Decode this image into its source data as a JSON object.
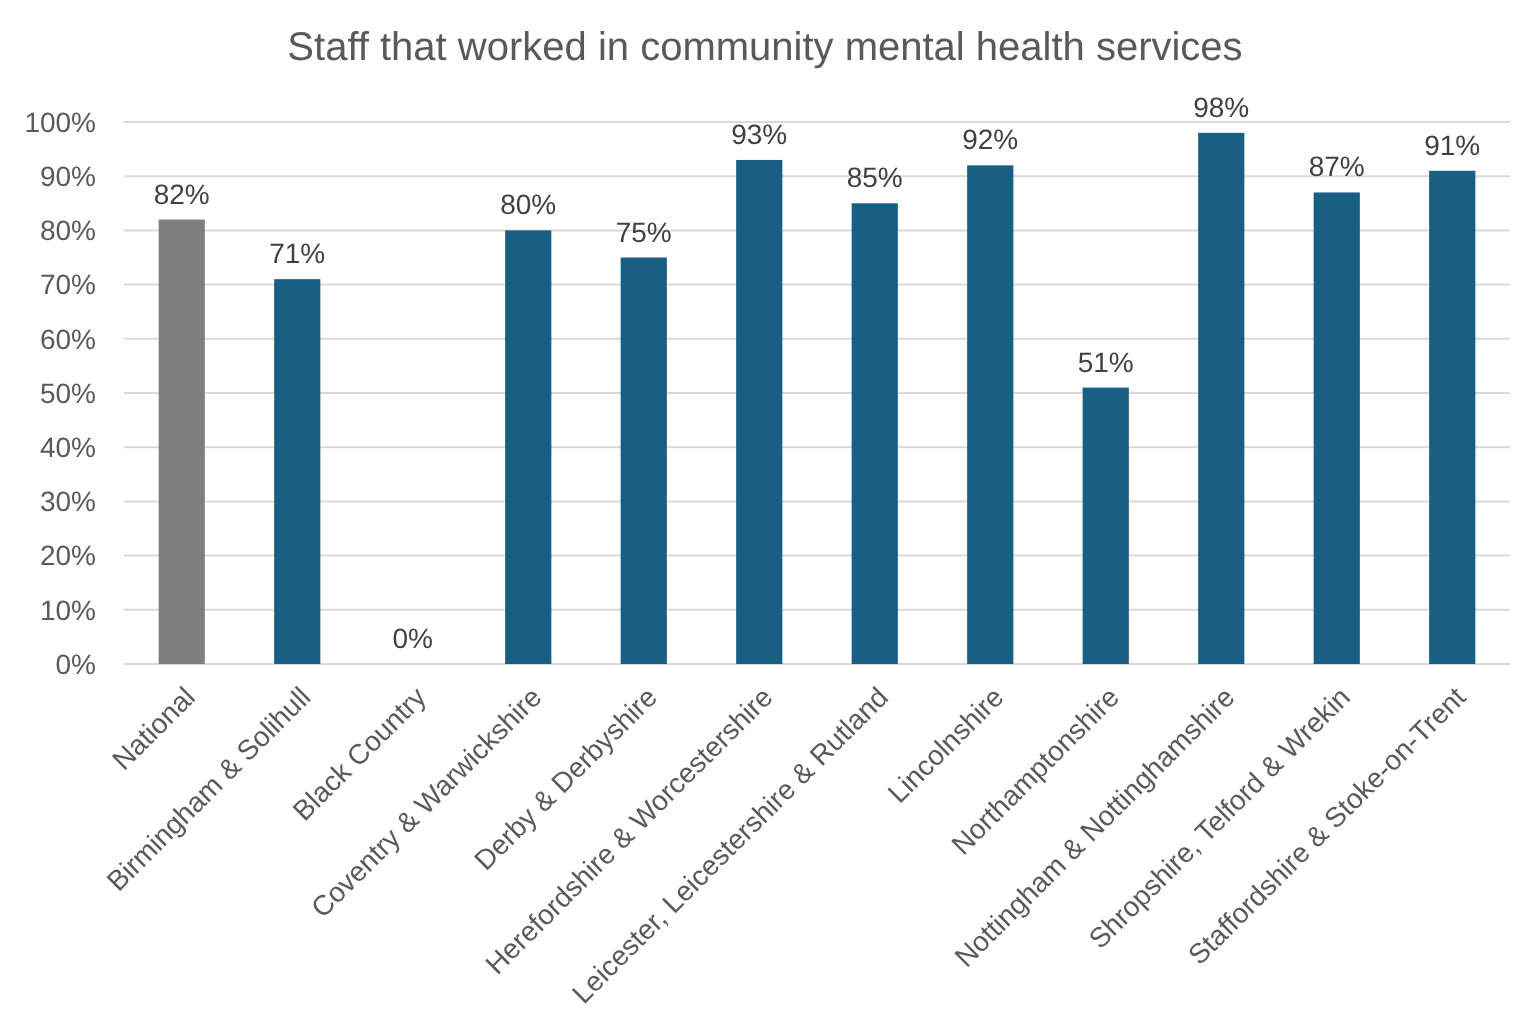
{
  "chart_data": {
    "type": "bar",
    "title": "Staff that worked in community mental health services",
    "categories": [
      "National",
      "Birmingham & Solihull",
      "Black Country",
      "Coventry & Warwickshire",
      "Derby & Derbyshire",
      "Herefordshire & Worcestershire",
      "Leicester, Leicestershire & Rutland",
      "Lincolnshire",
      "Northamptonshire",
      "Nottingham & Nottinghamshire",
      "Shropshire, Telford & Wrekin",
      "Staffordshire & Stoke-on-Trent"
    ],
    "values": [
      82,
      71,
      0,
      80,
      75,
      93,
      85,
      92,
      51,
      98,
      87,
      91
    ],
    "value_labels": [
      "82%",
      "71%",
      "0%",
      "80%",
      "75%",
      "93%",
      "85%",
      "92%",
      "51%",
      "98%",
      "87%",
      "91%"
    ],
    "colors": [
      "#7f7f7f",
      "#195e83",
      "#195e83",
      "#195e83",
      "#195e83",
      "#195e83",
      "#195e83",
      "#195e83",
      "#195e83",
      "#195e83",
      "#195e83",
      "#195e83"
    ],
    "ylim": [
      0,
      100
    ],
    "yticks": [
      {
        "value": 0,
        "label": "0%"
      },
      {
        "value": 10,
        "label": "10%"
      },
      {
        "value": 20,
        "label": "20%"
      },
      {
        "value": 30,
        "label": "30%"
      },
      {
        "value": 40,
        "label": "40%"
      },
      {
        "value": 50,
        "label": "50%"
      },
      {
        "value": 60,
        "label": "60%"
      },
      {
        "value": 70,
        "label": "70%"
      },
      {
        "value": 80,
        "label": "80%"
      },
      {
        "value": 90,
        "label": "90%"
      },
      {
        "value": 100,
        "label": "100%"
      }
    ],
    "grid": "y"
  }
}
